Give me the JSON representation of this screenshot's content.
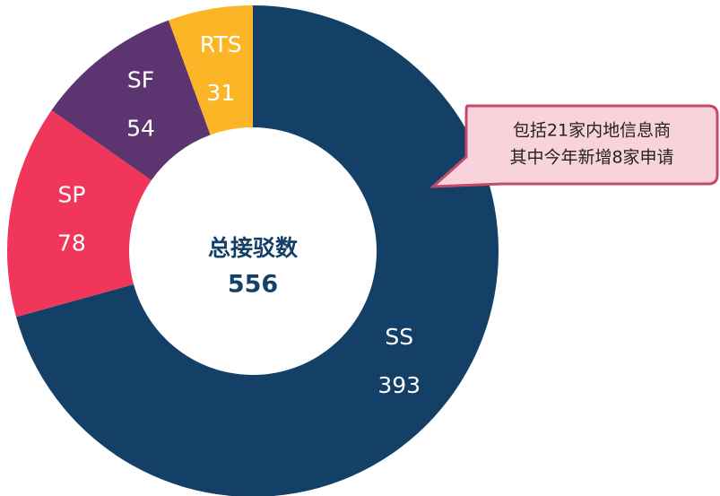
{
  "chart_data": {
    "type": "donut",
    "categories": [
      "SS",
      "SP",
      "SF",
      "RTS"
    ],
    "values": [
      393,
      78,
      54,
      31
    ],
    "colors": [
      "#143f66",
      "#f0365a",
      "#5c3470",
      "#fbb526"
    ],
    "center_label": "总接驳数",
    "total": 556,
    "annotation": [
      "包括21家内地信息商",
      "其中今年新增8家申请"
    ]
  }
}
